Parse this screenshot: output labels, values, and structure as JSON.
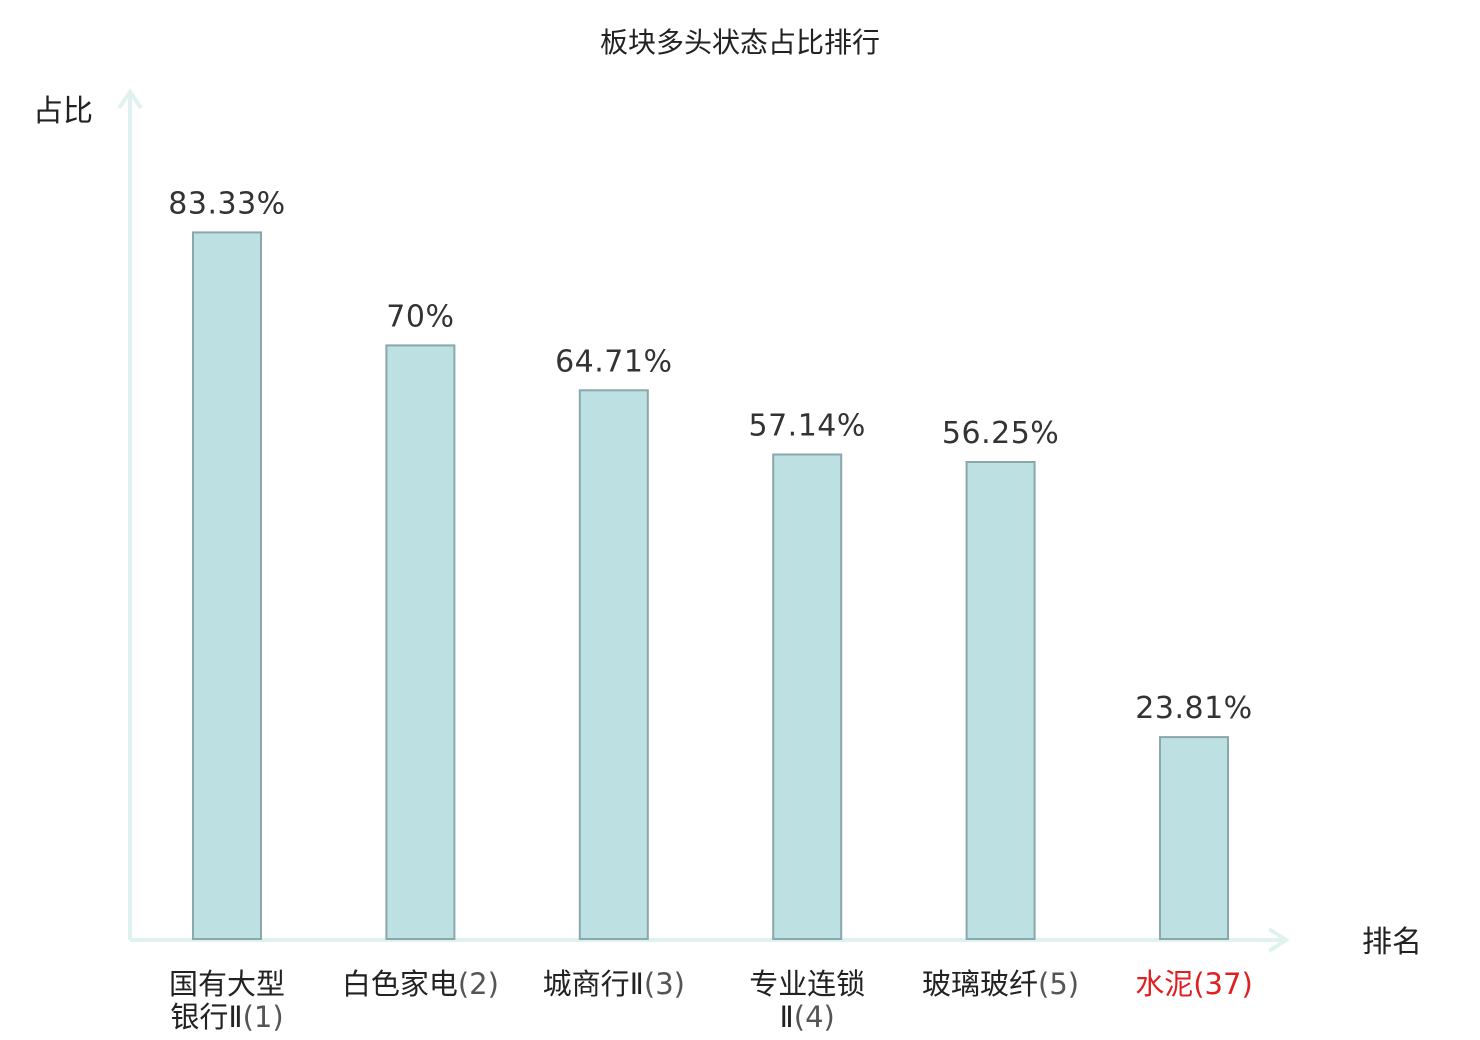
{
  "chart_data": {
    "type": "bar",
    "title": "板块多头状态占比排行",
    "ylabel": "占比",
    "xlabel": "排名",
    "ylim": [
      0,
      100
    ],
    "grid": false,
    "categories": [
      {
        "name_lines": [
          "国有大型",
          "银行Ⅱ"
        ],
        "rank": "(1)"
      },
      {
        "name_lines": [
          "白色家电"
        ],
        "rank": "(2)"
      },
      {
        "name_lines": [
          "城商行Ⅱ"
        ],
        "rank": "(3)"
      },
      {
        "name_lines": [
          "专业连锁",
          "Ⅱ"
        ],
        "rank": "(4)"
      },
      {
        "name_lines": [
          "玻璃玻纤"
        ],
        "rank": "(5)"
      },
      {
        "name_lines": [
          "水泥"
        ],
        "rank": "(37)",
        "highlight": true
      }
    ],
    "values": [
      83.33,
      70,
      64.71,
      57.14,
      56.25,
      23.81
    ],
    "value_labels": [
      "83.33%",
      "70%",
      "64.71%",
      "57.14%",
      "56.25%",
      "23.81%"
    ]
  },
  "colors": {
    "bar_fill": "#bde0e3",
    "bar_stroke": "#8aa7aa",
    "axis": "#dff2ef",
    "text": "#222222",
    "value_text": "#333333",
    "highlight": "#e02020"
  }
}
